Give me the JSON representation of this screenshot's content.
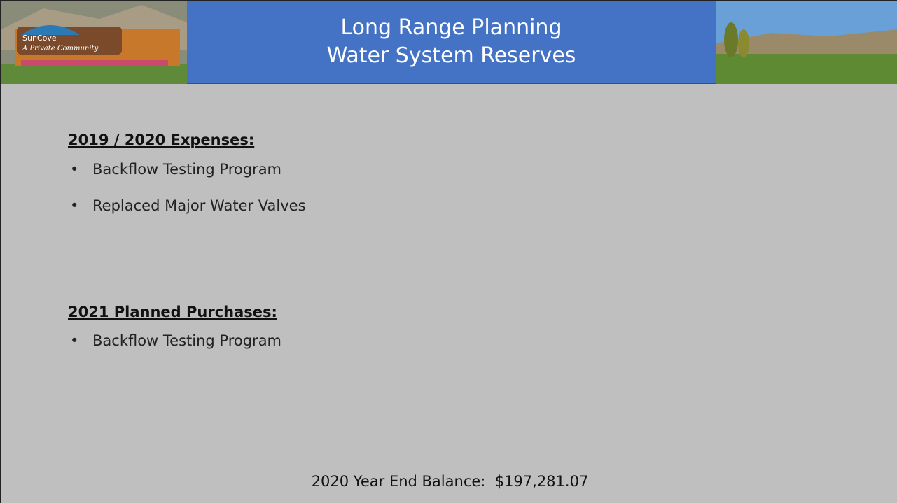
{
  "header": {
    "title_lines": [
      "Long Range Planning",
      "Water System Reserves"
    ],
    "sign": [
      "SunCove",
      "A Private Community"
    ]
  },
  "sections": [
    {
      "heading": "2019 / 2020 Expenses:",
      "items": [
        "Backflow Testing Program",
        "Replaced Major Water Valves"
      ]
    },
    {
      "heading": "2021 Planned Purchases:",
      "items": [
        "Backflow Testing Program"
      ]
    }
  ],
  "footer": "2020 Year End Balance:  $197,281.07"
}
